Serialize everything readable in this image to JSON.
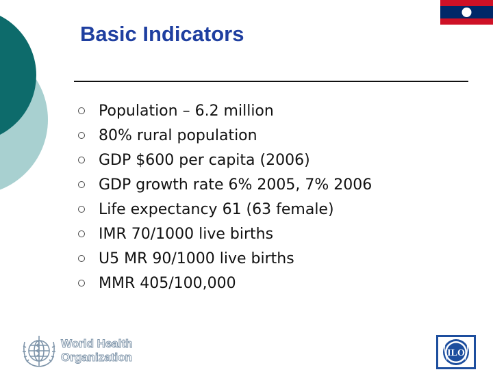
{
  "slide": {
    "title": "Basic Indicators",
    "bullets": [
      "Population – 6.2 million",
      "80% rural population",
      "GDP $600 per capita (2006)",
      "GDP growth rate 6% 2005, 7% 2006",
      "Life expectancy 61 (63 female)",
      "IMR 70/1000 live births",
      "U5 MR 90/1000 live births",
      "MMR 405/100,000"
    ]
  },
  "logos": {
    "who_line1": "World Health",
    "who_line2": "Organization",
    "ilo_text": "ILO"
  },
  "colors": {
    "title": "#1f3fa0",
    "decor_dark": "#0d6b6b",
    "decor_light": "#a8d0d0",
    "flag_red": "#ce1126",
    "flag_blue": "#002868",
    "ilo_blue": "#1d4e9e"
  }
}
